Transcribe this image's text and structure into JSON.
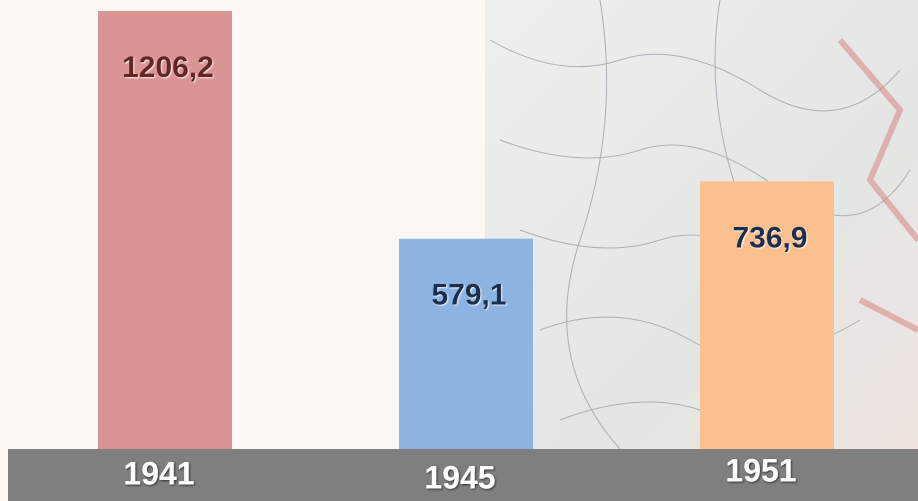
{
  "chart_data": {
    "type": "bar",
    "categories": [
      "1941",
      "1945",
      "1951"
    ],
    "values": [
      1206.2,
      579.1,
      736.9
    ],
    "value_labels": [
      "1206,2",
      "579,1",
      "736,9"
    ],
    "colors": [
      "#d99594",
      "#8db3e2",
      "#fac08f"
    ],
    "label_colors": [
      "#632523",
      "#1f2d4d",
      "#1f2d4d"
    ]
  }
}
